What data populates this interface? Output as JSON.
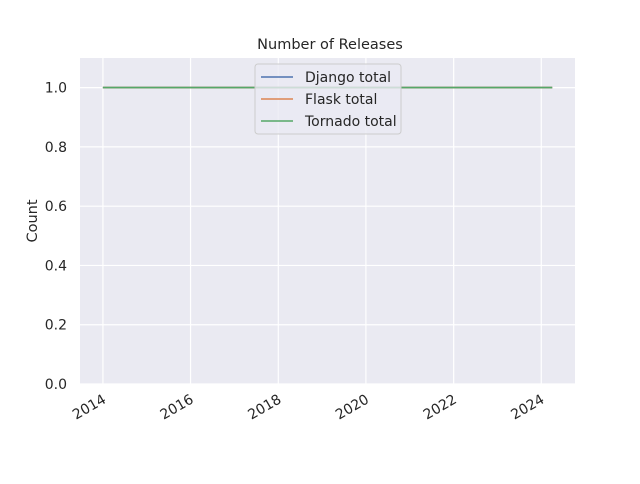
{
  "chart_data": {
    "type": "line",
    "title": "Number of Releases",
    "xlabel": "",
    "ylabel": "Count",
    "xlim": [
      "2013-06-24",
      "2024-10-08"
    ],
    "ylim": [
      0,
      1.1
    ],
    "x_ticks": [
      "2014",
      "2016",
      "2018",
      "2020",
      "2022",
      "2024"
    ],
    "y_ticks": [
      "0.0",
      "0.2",
      "0.4",
      "0.6",
      "0.8",
      "1.0"
    ],
    "grid": true,
    "legend_position": "upper-center",
    "colors": {
      "background": "#EAEAF2",
      "grid": "#FFFFFF"
    },
    "series": [
      {
        "name": "Django total",
        "color": "#4C72B0",
        "x": [
          "2014-01-01",
          "2024-04-01"
        ],
        "y": [
          1,
          1
        ]
      },
      {
        "name": "Flask total",
        "color": "#DD8452",
        "x": [
          "2014-01-01",
          "2024-04-01"
        ],
        "y": [
          1,
          1
        ]
      },
      {
        "name": "Tornado total",
        "color": "#55A868",
        "x": [
          "2014-01-01",
          "2024-04-01"
        ],
        "y": [
          1,
          1
        ]
      }
    ]
  }
}
